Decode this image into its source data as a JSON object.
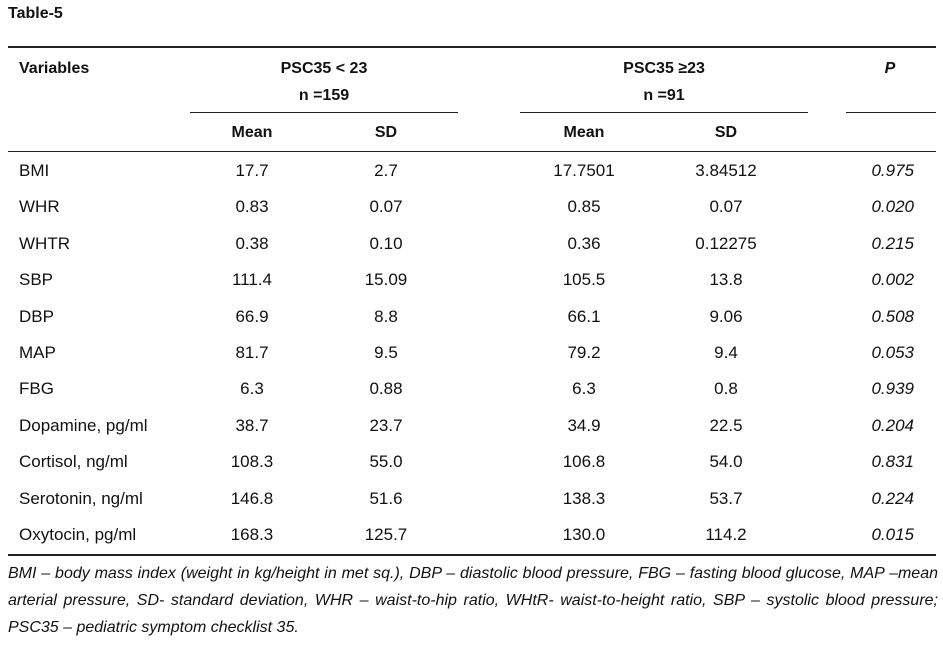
{
  "title": "Table-5",
  "header": {
    "variables": "Variables",
    "group1_line1": "PSC35 < 23",
    "group1_line2": "n =159",
    "group2_line1": "PSC35 ≥23",
    "group2_line2": "n =91",
    "p": "P",
    "mean1": "Mean",
    "sd1": "SD",
    "mean2": "Mean",
    "sd2": "SD"
  },
  "rows": [
    {
      "variable": "BMI",
      "mean1": "17.7",
      "sd1": "2.7",
      "mean2": "17.7501",
      "sd2": "3.84512",
      "p": "0.975"
    },
    {
      "variable": "WHR",
      "mean1": "0.83",
      "sd1": "0.07",
      "mean2": "0.85",
      "sd2": "0.07",
      "p": "0.020"
    },
    {
      "variable": "WHTR",
      "mean1": "0.38",
      "sd1": "0.10",
      "mean2": "0.36",
      "sd2": "0.12275",
      "p": "0.215"
    },
    {
      "variable": "SBP",
      "mean1": "111.4",
      "sd1": "15.09",
      "mean2": "105.5",
      "sd2": "13.8",
      "p": "0.002"
    },
    {
      "variable": "DBP",
      "mean1": "66.9",
      "sd1": "8.8",
      "mean2": "66.1",
      "sd2": "9.06",
      "p": "0.508"
    },
    {
      "variable": "MAP",
      "mean1": "81.7",
      "sd1": "9.5",
      "mean2": "79.2",
      "sd2": "9.4",
      "p": "0.053"
    },
    {
      "variable": "FBG",
      "mean1": "6.3",
      "sd1": "0.88",
      "mean2": "6.3",
      "sd2": "0.8",
      "p": "0.939"
    },
    {
      "variable": "Dopamine, pg/ml",
      "mean1": "38.7",
      "sd1": "23.7",
      "mean2": "34.9",
      "sd2": "22.5",
      "p": "0.204"
    },
    {
      "variable": "Cortisol, ng/ml",
      "mean1": "108.3",
      "sd1": "55.0",
      "mean2": "106.8",
      "sd2": "54.0",
      "p": "0.831"
    },
    {
      "variable": "Serotonin, ng/ml",
      "mean1": "146.8",
      "sd1": "51.6",
      "mean2": "138.3",
      "sd2": "53.7",
      "p": "0.224"
    },
    {
      "variable": "Oxytocin, pg/ml",
      "mean1": "168.3",
      "sd1": "125.7",
      "mean2": "130.0",
      "sd2": "114.2",
      "p": "0.015"
    }
  ],
  "footnote": "BMI – body mass index (weight in kg/height in met sq.), DBP – diastolic blood pressure, FBG – fasting blood glucose, MAP –mean arterial pressure, SD- standard deviation, WHR – waist-to-hip ratio, WHtR- waist-to-height ratio, SBP – systolic blood pressure; PSC35 – pediatric symptom checklist 35."
}
